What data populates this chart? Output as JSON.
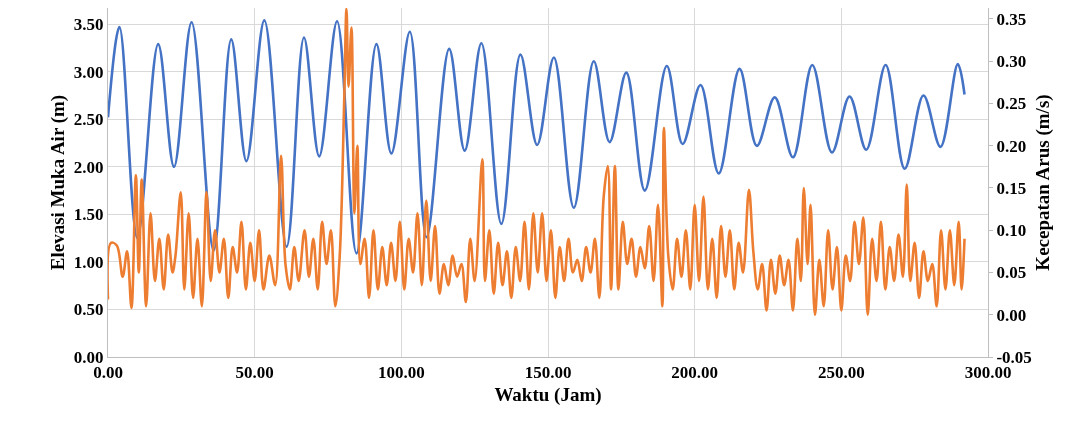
{
  "chart_data": {
    "type": "line",
    "xlabel": "Waktu (Jam)",
    "ylabel": "Elevasi Muka Air (m)",
    "y2label": "Kecepatan Arus (m/s)",
    "xlim": [
      0,
      300
    ],
    "xticks": [
      {
        "value": 0,
        "label": "0.00"
      },
      {
        "value": 50,
        "label": "50.00"
      },
      {
        "value": 100,
        "label": "100.00"
      },
      {
        "value": 150,
        "label": "150.00"
      },
      {
        "value": 200,
        "label": "200.00"
      },
      {
        "value": 250,
        "label": "250.00"
      },
      {
        "value": 300,
        "label": "300.00"
      }
    ],
    "ylim": [
      0,
      3.67
    ],
    "yticks": [
      {
        "value": 0,
        "label": "0.00"
      },
      {
        "value": 0.5,
        "label": "0.50"
      },
      {
        "value": 1,
        "label": "1.00"
      },
      {
        "value": 1.5,
        "label": "1.50"
      },
      {
        "value": 2,
        "label": "2.00"
      },
      {
        "value": 2.5,
        "label": "2.50"
      },
      {
        "value": 3,
        "label": "3.00"
      },
      {
        "value": 3.5,
        "label": "3.50"
      }
    ],
    "y2lim": [
      -0.05,
      0.363
    ],
    "y2ticks": [
      {
        "value": -0.05,
        "label": "-0.05"
      },
      {
        "value": 0,
        "label": "0.00"
      },
      {
        "value": 0.05,
        "label": "0.05"
      },
      {
        "value": 0.1,
        "label": "0.10"
      },
      {
        "value": 0.15,
        "label": "0.15"
      },
      {
        "value": 0.2,
        "label": "0.20"
      },
      {
        "value": 0.25,
        "label": "0.25"
      },
      {
        "value": 0.3,
        "label": "0.30"
      },
      {
        "value": 0.35,
        "label": "0.35"
      }
    ],
    "grid": true,
    "marker": "none",
    "line_style": "solid",
    "series": [
      {
        "color": "#4472c4",
        "x": [
          0,
          3.9,
          10,
          17.1,
          22.5,
          28.5,
          36.0,
          42.0,
          47.2,
          53.3,
          60.9,
          66.8,
          72.0,
          78.1,
          84.7,
          91.5,
          96.6,
          102.9,
          108.6,
          116.3,
          121.6,
          127.3,
          134.1,
          140.6,
          146.3,
          152.0,
          158.8,
          165.6,
          171.0,
          176.7,
          183.0,
          190.5,
          195.9,
          202.0,
          208.2,
          215.3,
          221.2,
          227.3,
          233.5,
          240.1,
          246.8,
          252.8,
          258.5,
          265.1,
          271.6,
          278.0,
          283.8,
          289.7,
          292.0
        ],
        "values": [
          2.52,
          3.47,
          1.25,
          3.29,
          2.0,
          3.52,
          1.12,
          3.34,
          2.06,
          3.54,
          1.16,
          3.36,
          2.11,
          3.53,
          1.09,
          3.29,
          2.14,
          3.42,
          1.26,
          3.24,
          2.17,
          3.3,
          1.4,
          3.18,
          2.23,
          3.15,
          1.57,
          3.11,
          2.26,
          2.99,
          1.75,
          3.06,
          2.24,
          2.86,
          1.93,
          3.03,
          2.22,
          2.73,
          2.1,
          3.07,
          2.15,
          2.74,
          2.18,
          3.07,
          1.98,
          2.75,
          2.21,
          3.08,
          2.76
        ]
      },
      {
        "color": "#ed7d31",
        "axis": "y2",
        "x": [
          0,
          1,
          3,
          5,
          6.5,
          8,
          9.5,
          10.5,
          11.5,
          13,
          14.5,
          16,
          17.5,
          19,
          20.5,
          22,
          23,
          24.8,
          26,
          27.5,
          29,
          30.5,
          32,
          33.6,
          35,
          36.5,
          38,
          39.5,
          41,
          42.5,
          44,
          45.5,
          47,
          48.5,
          50,
          51.5,
          53,
          55,
          57,
          59,
          60.5,
          62,
          63.5,
          65,
          67,
          68.5,
          70,
          71.5,
          73,
          74.5,
          76,
          77.5,
          79,
          80.5,
          81.3,
          82,
          83,
          84,
          85,
          86,
          87.5,
          89,
          90.5,
          92,
          93.5,
          95,
          96.5,
          98,
          99.5,
          101,
          102.5,
          104,
          105.5,
          107,
          108.5,
          110,
          111.5,
          113,
          114.5,
          116,
          117.5,
          119,
          120.5,
          122,
          123.5,
          125,
          127.6,
          128.5,
          130,
          131.5,
          133,
          134.5,
          136,
          137.5,
          139,
          140.5,
          142,
          143.5,
          145,
          146.5,
          148,
          149.5,
          151,
          152.5,
          154,
          155.5,
          157,
          158.5,
          160,
          161.5,
          163,
          164.5,
          166,
          167.5,
          169,
          170.4,
          171.5,
          172.8,
          174,
          175.5,
          177,
          178.5,
          180,
          181.5,
          183,
          184.5,
          186,
          187.5,
          189,
          189.5,
          191,
          192.5,
          194,
          195.5,
          197,
          198.5,
          200,
          201.5,
          203,
          204.5,
          206,
          207.5,
          209,
          210.5,
          212,
          213.5,
          215,
          216.5,
          218.5,
          220,
          221.5,
          223,
          224.5,
          226,
          227.5,
          229,
          230.5,
          232,
          233.5,
          235,
          236.2,
          237.2,
          238.5,
          239.5,
          241,
          242.5,
          244,
          245.5,
          247,
          248.5,
          250,
          251.5,
          253,
          254.5,
          256,
          257.5,
          259,
          260.5,
          262,
          263.5,
          265,
          266.5,
          268,
          269.5,
          271,
          272.3,
          273.5,
          275,
          276.5,
          278,
          279.5,
          281,
          282.5,
          284,
          285.5,
          287,
          288.5,
          290,
          291,
          292
        ],
        "values": [
          0.018,
          0.085,
          0.082,
          0.045,
          0.075,
          0.008,
          0.165,
          0.05,
          0.16,
          0.01,
          0.12,
          0.04,
          0.09,
          0.03,
          0.095,
          0.05,
          0.07,
          0.145,
          0.03,
          0.12,
          0.02,
          0.09,
          0.01,
          0.145,
          0.04,
          0.1,
          0.05,
          0.09,
          0.02,
          0.08,
          0.05,
          0.11,
          0.03,
          0.085,
          0.04,
          0.1,
          0.03,
          0.07,
          0.035,
          0.188,
          0.06,
          0.03,
          0.08,
          0.04,
          0.1,
          0.045,
          0.09,
          0.03,
          0.11,
          0.06,
          0.1,
          0.01,
          0.07,
          0.25,
          0.362,
          0.27,
          0.34,
          0.12,
          0.2,
          0.06,
          0.09,
          0.02,
          0.1,
          0.03,
          0.08,
          0.035,
          0.085,
          0.04,
          0.11,
          0.03,
          0.09,
          0.05,
          0.12,
          0.035,
          0.135,
          0.04,
          0.105,
          0.025,
          0.06,
          0.035,
          0.07,
          0.045,
          0.06,
          0.015,
          0.09,
          0.04,
          0.184,
          0.04,
          0.1,
          0.025,
          0.085,
          0.035,
          0.075,
          0.02,
          0.08,
          0.04,
          0.11,
          0.03,
          0.12,
          0.05,
          0.12,
          0.04,
          0.1,
          0.02,
          0.08,
          0.04,
          0.09,
          0.05,
          0.065,
          0.04,
          0.08,
          0.05,
          0.09,
          0.02,
          0.14,
          0.176,
          0.03,
          0.176,
          0.03,
          0.11,
          0.06,
          0.09,
          0.045,
          0.08,
          0.055,
          0.105,
          0.04,
          0.13,
          0.01,
          0.221,
          0.07,
          0.03,
          0.09,
          0.045,
          0.1,
          0.03,
          0.13,
          0.04,
          0.14,
          0.03,
          0.09,
          0.02,
          0.105,
          0.045,
          0.1,
          0.03,
          0.085,
          0.05,
          0.148,
          0.075,
          0.03,
          0.06,
          0.005,
          0.065,
          0.025,
          0.07,
          0.035,
          0.065,
          0.005,
          0.09,
          0.04,
          0.15,
          0.06,
          0.13,
          0.0,
          0.065,
          0.01,
          0.1,
          0.03,
          0.08,
          0.005,
          0.07,
          0.04,
          0.11,
          0.06,
          0.115,
          0.0,
          0.09,
          0.04,
          0.11,
          0.03,
          0.08,
          0.04,
          0.095,
          0.045,
          0.154,
          0.04,
          0.085,
          0.02,
          0.075,
          0.04,
          0.06,
          0.01,
          0.1,
          0.03,
          0.1,
          0.035,
          0.11,
          0.03,
          0.09
        ]
      }
    ]
  }
}
